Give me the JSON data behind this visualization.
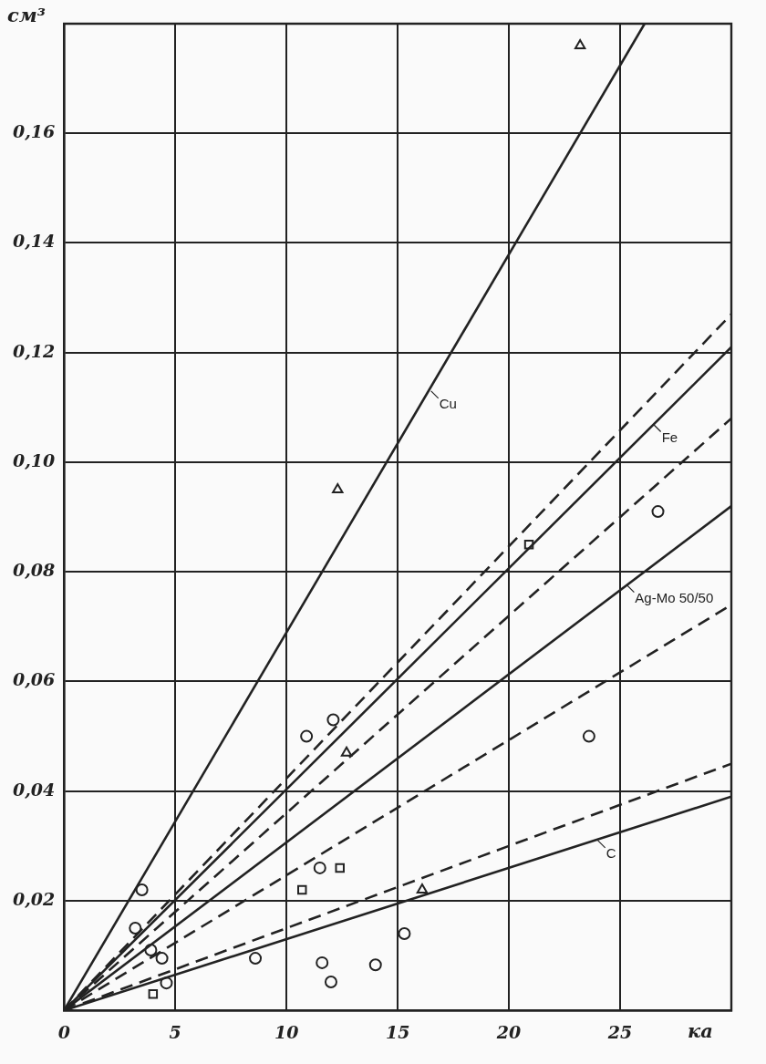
{
  "chart_data": {
    "type": "line",
    "xlabel": "ка",
    "ylabel": "см³",
    "xlim": [
      0,
      30
    ],
    "ylim": [
      0,
      0.18
    ],
    "xticks": [
      0,
      5,
      10,
      15,
      20,
      25
    ],
    "yticks": [
      {
        "value": 0.02,
        "label": "0,02"
      },
      {
        "value": 0.04,
        "label": "0,04"
      },
      {
        "value": 0.06,
        "label": "0,06"
      },
      {
        "value": 0.08,
        "label": "0,08"
      },
      {
        "value": 0.1,
        "label": "0,10"
      },
      {
        "value": 0.12,
        "label": "0,12"
      },
      {
        "value": 0.14,
        "label": "0,14"
      },
      {
        "value": 0.16,
        "label": "0,16"
      }
    ],
    "grid": true,
    "series": [
      {
        "type": "line",
        "color": "#222222",
        "line_style": "solid",
        "marker": "none",
        "x": [
          0,
          26.1
        ],
        "values": [
          0,
          0.18
        ]
      },
      {
        "type": "line",
        "color": "#222222",
        "line_style": "dashed",
        "marker": "none",
        "x": [
          0,
          30
        ],
        "values": [
          0,
          0.127
        ]
      },
      {
        "type": "line",
        "color": "#222222",
        "line_style": "solid",
        "marker": "none",
        "x": [
          0,
          30
        ],
        "values": [
          0,
          0.121
        ]
      },
      {
        "type": "line",
        "color": "#222222",
        "line_style": "dashed",
        "marker": "none",
        "x": [
          0,
          30
        ],
        "values": [
          0,
          0.108
        ]
      },
      {
        "type": "line",
        "color": "#222222",
        "line_style": "solid",
        "marker": "none",
        "x": [
          0,
          30
        ],
        "values": [
          0,
          0.092
        ]
      },
      {
        "type": "line",
        "color": "#222222",
        "line_style": "dashed",
        "marker": "none",
        "x": [
          0,
          30
        ],
        "values": [
          0,
          0.074
        ]
      },
      {
        "type": "line",
        "color": "#222222",
        "line_style": "dashed",
        "marker": "none",
        "x": [
          0,
          30
        ],
        "values": [
          0,
          0.045
        ]
      },
      {
        "type": "line",
        "color": "#222222",
        "line_style": "solid",
        "marker": "none",
        "x": [
          0,
          30
        ],
        "values": [
          0,
          0.039
        ]
      },
      {
        "type": "scatter",
        "color": "#222222",
        "marker": "triangle",
        "x": [
          23.2,
          12.3,
          12.7,
          16.1
        ],
        "values": [
          0.176,
          0.095,
          0.047,
          0.022
        ]
      },
      {
        "type": "scatter",
        "color": "#222222",
        "marker": "square",
        "x": [
          20.9,
          12.4,
          10.7,
          4.0
        ],
        "values": [
          0.085,
          0.026,
          0.022,
          0.003
        ]
      },
      {
        "type": "scatter",
        "color": "#222222",
        "marker": "circle",
        "x": [
          26.7,
          23.6,
          10.9,
          12.1,
          3.5,
          3.2,
          3.9,
          4.4,
          4.6,
          8.6,
          11.5,
          11.6,
          12.0,
          14.0,
          15.3
        ],
        "values": [
          0.091,
          0.05,
          0.05,
          0.053,
          0.022,
          0.015,
          0.011,
          0.0095,
          0.005,
          0.0095,
          0.026,
          0.0087,
          0.0052,
          0.0083,
          0.014
        ]
      }
    ],
    "annotations": [
      {
        "text": "Cu",
        "x": 16.5,
        "y": 0.113
      },
      {
        "text": "Fe",
        "x": 26.5,
        "y": 0.1069
      },
      {
        "text": "Ag-Mo 50/50",
        "x": 25.3,
        "y": 0.0776
      },
      {
        "text": "C",
        "x": 24,
        "y": 0.031
      }
    ]
  }
}
